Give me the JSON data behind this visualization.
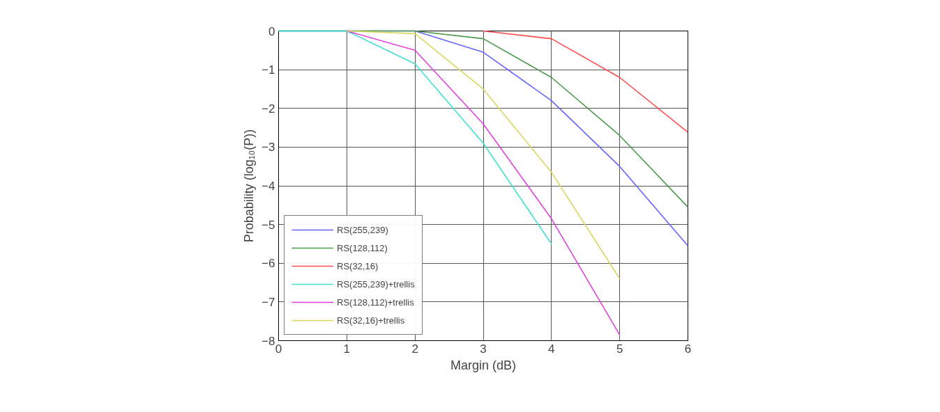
{
  "chart_data": {
    "type": "line",
    "xlabel": "Margin (dB)",
    "ylabel": "Probability (log₁₀(P))",
    "xlim": [
      0,
      6
    ],
    "ylim": [
      -8,
      0
    ],
    "xticks": [
      0,
      1,
      2,
      3,
      4,
      5,
      6
    ],
    "yticks": [
      -8,
      -7,
      -6,
      -5,
      -4,
      -3,
      -2,
      -1,
      0
    ],
    "grid": true,
    "legend": "bottom left",
    "marker": "none",
    "line_style": "solid",
    "x": [
      0,
      1,
      2,
      3,
      4,
      5,
      6
    ],
    "series": [
      {
        "name": "RS(255,239)",
        "color": "#6464ff",
        "values": [
          0,
          0,
          0,
          -0.55,
          -1.8,
          -3.5,
          -5.55
        ]
      },
      {
        "name": "RS(128,112)",
        "color": "#4c9a4c",
        "values": [
          0,
          0,
          0,
          -0.2,
          -1.2,
          -2.7,
          -4.55
        ]
      },
      {
        "name": "RS(32,16)",
        "color": "#ff4c4c",
        "values": [
          null,
          null,
          null,
          0,
          -0.2,
          -1.2,
          -2.62
        ]
      },
      {
        "name": "RS(255,239)+trellis",
        "color": "#40e0d0",
        "values": [
          0,
          0,
          -0.85,
          -2.9,
          -5.5,
          null,
          null
        ]
      },
      {
        "name": "RS(128,112)+trellis",
        "color": "#e040e0",
        "values": [
          null,
          0,
          -0.5,
          -2.4,
          -4.85,
          -7.85,
          null
        ]
      },
      {
        "name": "RS(32,16)+trellis",
        "color": "#d8d860",
        "values": [
          null,
          0,
          -0.07,
          -1.5,
          -3.65,
          -6.4,
          null
        ]
      }
    ]
  }
}
